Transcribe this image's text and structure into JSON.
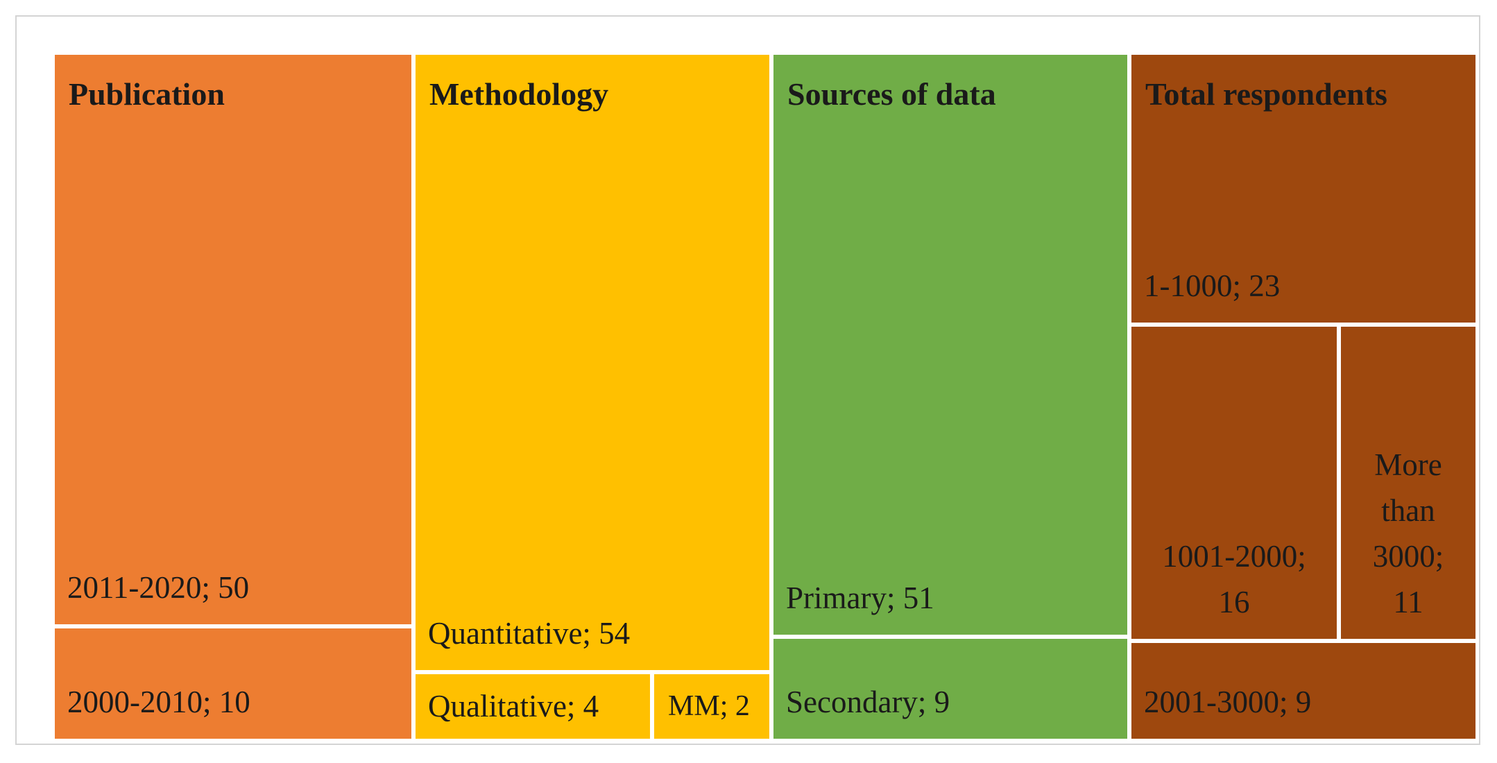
{
  "chart_data": {
    "type": "treemap",
    "groups": [
      {
        "name": "Publication",
        "color": "#ED7D31",
        "items": [
          {
            "label": "2011-2020; 50",
            "category": "2011-2020",
            "value": 50
          },
          {
            "label": "2000-2010; 10",
            "category": "2000-2010",
            "value": 10
          }
        ]
      },
      {
        "name": "Methodology",
        "color": "#FFC000",
        "items": [
          {
            "label": "Quantitative; 54",
            "category": "Quantitative",
            "value": 54
          },
          {
            "label": "Qualitative; 4",
            "category": "Qualitative",
            "value": 4
          },
          {
            "label": "MM; 2",
            "category": "MM",
            "value": 2
          }
        ]
      },
      {
        "name": "Sources of data",
        "color": "#70AD47",
        "items": [
          {
            "label": "Primary; 51",
            "category": "Primary",
            "value": 51
          },
          {
            "label": "Secondary; 9",
            "category": "Secondary",
            "value": 9
          }
        ]
      },
      {
        "name": "Total respondents",
        "color": "#9E480E",
        "items": [
          {
            "label": "1-1000; 23",
            "category": "1-1000",
            "value": 23
          },
          {
            "label": "1001-2000; 16",
            "category": "1001-2000",
            "value": 16
          },
          {
            "label": "More than 3000; 11",
            "category": "More than 3000",
            "value": 11
          },
          {
            "label": "2001-3000; 9",
            "category": "2001-3000",
            "value": 9
          }
        ]
      }
    ]
  }
}
